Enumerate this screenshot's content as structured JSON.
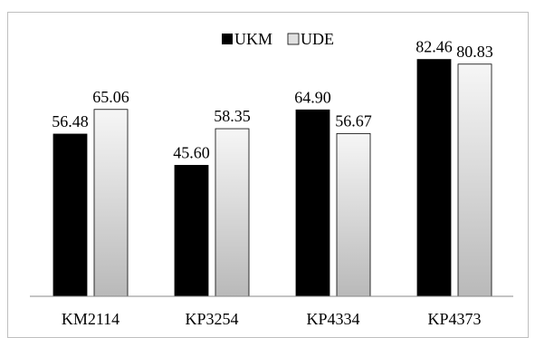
{
  "chart_data": {
    "type": "bar",
    "categories": [
      "KM2114",
      "KP3254",
      "KP4334",
      "KP4373"
    ],
    "series": [
      {
        "name": "UKM",
        "values": [
          56.48,
          45.6,
          64.9,
          82.46
        ],
        "color": "#000000"
      },
      {
        "name": "UDE",
        "values": [
          65.06,
          58.35,
          56.67,
          80.83
        ],
        "color": "#e8e8e8"
      }
    ],
    "value_labels": [
      [
        "56.48",
        "45.60",
        "64.90",
        "82.46"
      ],
      [
        "65.06",
        "58.35",
        "56.67",
        "80.83"
      ]
    ],
    "title": "",
    "xlabel": "",
    "ylabel": "",
    "ylim": [
      0,
      100
    ],
    "legend_position": "top-center",
    "grid": false
  }
}
